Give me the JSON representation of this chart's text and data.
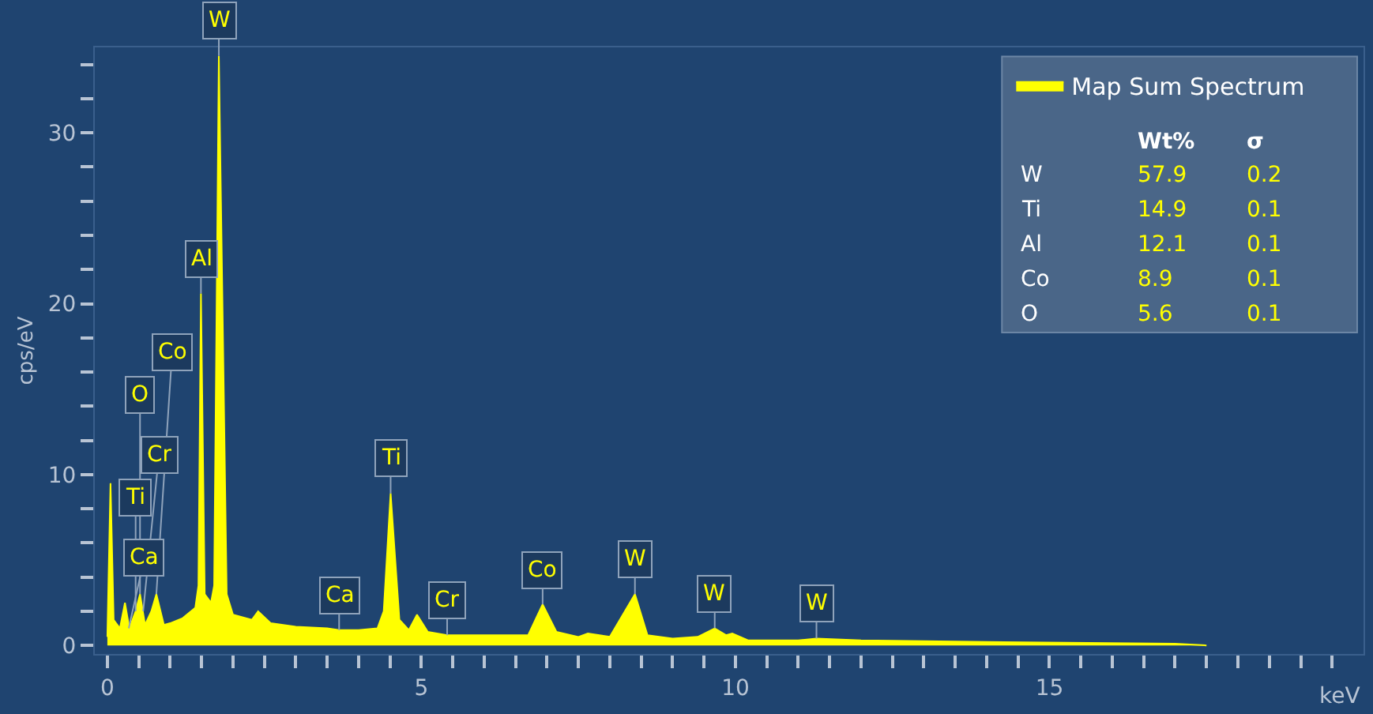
{
  "chart_data": {
    "type": "area",
    "xlabel": "keV",
    "ylabel": "cps/eV",
    "legend": "top right",
    "grid": false,
    "x": [
      0.0,
      0.05,
      0.1,
      0.2,
      0.28,
      0.35,
      0.45,
      0.52,
      0.6,
      0.7,
      0.78,
      0.9,
      1.0,
      1.2,
      1.4,
      1.45,
      1.49,
      1.55,
      1.65,
      1.7,
      1.775,
      1.9,
      2.0,
      2.3,
      2.4,
      2.6,
      3.0,
      3.5,
      3.69,
      4.0,
      4.3,
      4.4,
      4.51,
      4.65,
      4.8,
      4.93,
      5.1,
      5.41,
      6.0,
      6.7,
      6.93,
      7.15,
      7.5,
      7.65,
      8.0,
      8.4,
      8.6,
      9.0,
      9.4,
      9.67,
      9.85,
      9.95,
      10.2,
      11.0,
      11.29,
      12.0,
      14.0,
      17.0,
      17.5
    ],
    "series": [
      {
        "name": "Map Sum Spectrum",
        "color": "#ffff00",
        "values": [
          0.5,
          9.5,
          1.5,
          1.0,
          2.5,
          1.0,
          2.0,
          3.0,
          1.2,
          2.0,
          3.0,
          1.2,
          1.3,
          1.6,
          2.2,
          3.5,
          20.6,
          3.0,
          2.5,
          3.5,
          34.5,
          3.0,
          1.8,
          1.5,
          2.0,
          1.3,
          1.1,
          1.0,
          0.9,
          0.9,
          1.0,
          2.0,
          8.9,
          1.5,
          0.9,
          1.8,
          0.8,
          0.6,
          0.6,
          0.6,
          2.4,
          0.8,
          0.5,
          0.7,
          0.5,
          3.0,
          0.6,
          0.4,
          0.5,
          1.0,
          0.6,
          0.7,
          0.3,
          0.3,
          0.4,
          0.3,
          0.2,
          0.1,
          0.0
        ]
      }
    ],
    "xlim": [
      -0.2,
      20.0
    ],
    "xticks": [
      0,
      {
        "value": 0.5,
        "label": null
      },
      {
        "value": 1,
        "label": null
      },
      {
        "value": 1.5,
        "label": null
      },
      {
        "value": 2,
        "label": null
      },
      {
        "value": 2.5,
        "label": null
      },
      {
        "value": 3,
        "label": null
      },
      {
        "value": 3.5,
        "label": null
      },
      {
        "value": 4,
        "label": null
      },
      {
        "value": 4.5,
        "label": null
      },
      5,
      {
        "value": 5.5,
        "label": null
      },
      {
        "value": 6,
        "label": null
      },
      {
        "value": 6.5,
        "label": null
      },
      {
        "value": 7,
        "label": null
      },
      {
        "value": 7.5,
        "label": null
      },
      {
        "value": 8,
        "label": null
      },
      {
        "value": 8.5,
        "label": null
      },
      {
        "value": 9,
        "label": null
      },
      {
        "value": 9.5,
        "label": null
      },
      10,
      {
        "value": 10.5,
        "label": null
      },
      {
        "value": 11,
        "label": null
      },
      {
        "value": 11.5,
        "label": null
      },
      {
        "value": 12,
        "label": null
      },
      {
        "value": 12.5,
        "label": null
      },
      {
        "value": 13,
        "label": null
      },
      {
        "value": 13.5,
        "label": null
      },
      {
        "value": 14,
        "label": null
      },
      {
        "value": 14.5,
        "label": null
      },
      15,
      {
        "value": 15.5,
        "label": null
      },
      {
        "value": 16,
        "label": null
      },
      {
        "value": 16.5,
        "label": null
      },
      {
        "value": 17,
        "label": null
      },
      {
        "value": 17.5,
        "label": null
      },
      {
        "value": 18,
        "label": null
      },
      {
        "value": 18.5,
        "label": null
      },
      {
        "value": 19,
        "label": null
      },
      {
        "value": 19.5,
        "label": null
      }
    ],
    "ylim": [
      -0.5,
      35
    ],
    "yticks": [
      0,
      {
        "value": 2,
        "label": null
      },
      {
        "value": 4,
        "label": null
      },
      {
        "value": 6,
        "label": null
      },
      {
        "value": 8,
        "label": null
      },
      10,
      {
        "value": 12,
        "label": null
      },
      {
        "value": 14,
        "label": null
      },
      {
        "value": 16,
        "label": null
      },
      {
        "value": 18,
        "label": null
      },
      20,
      {
        "value": 22,
        "label": null
      },
      {
        "value": 24,
        "label": null
      },
      {
        "value": 26,
        "label": null
      },
      {
        "value": 28,
        "label": null
      },
      30,
      {
        "value": 32,
        "label": null
      },
      {
        "value": 34,
        "label": null
      }
    ],
    "annotations": [
      {
        "text": "W",
        "x": 1.775,
        "y": 34.5
      },
      {
        "text": "Al",
        "x": 1.49,
        "y": 20.6
      },
      {
        "text": "Co",
        "x": 0.78,
        "y": 3.0
      },
      {
        "text": "O",
        "x": 0.52,
        "y": 3.0
      },
      {
        "text": "Cr",
        "x": 0.57,
        "y": 2.0
      },
      {
        "text": "Ti",
        "x": 0.45,
        "y": 2.0
      },
      {
        "text": "Ca",
        "x": 0.34,
        "y": 1.0
      },
      {
        "text": "Ti",
        "x": 4.51,
        "y": 8.9
      },
      {
        "text": "Ca",
        "x": 3.69,
        "y": 0.9
      },
      {
        "text": "Cr",
        "x": 5.41,
        "y": 0.6
      },
      {
        "text": "Co",
        "x": 6.93,
        "y": 2.4
      },
      {
        "text": "W",
        "x": 8.4,
        "y": 3.0
      },
      {
        "text": "W",
        "x": 9.67,
        "y": 1.0
      },
      {
        "text": "W",
        "x": 11.29,
        "y": 0.4
      },
      "Wt%",
      "σ",
      "W",
      "57.9",
      "0.2",
      "Ti",
      "14.9",
      "0.1",
      "Al",
      "12.1",
      "0.1",
      "Co",
      "8.9",
      "0.1",
      "O",
      "5.6",
      "0.1"
    ]
  }
}
